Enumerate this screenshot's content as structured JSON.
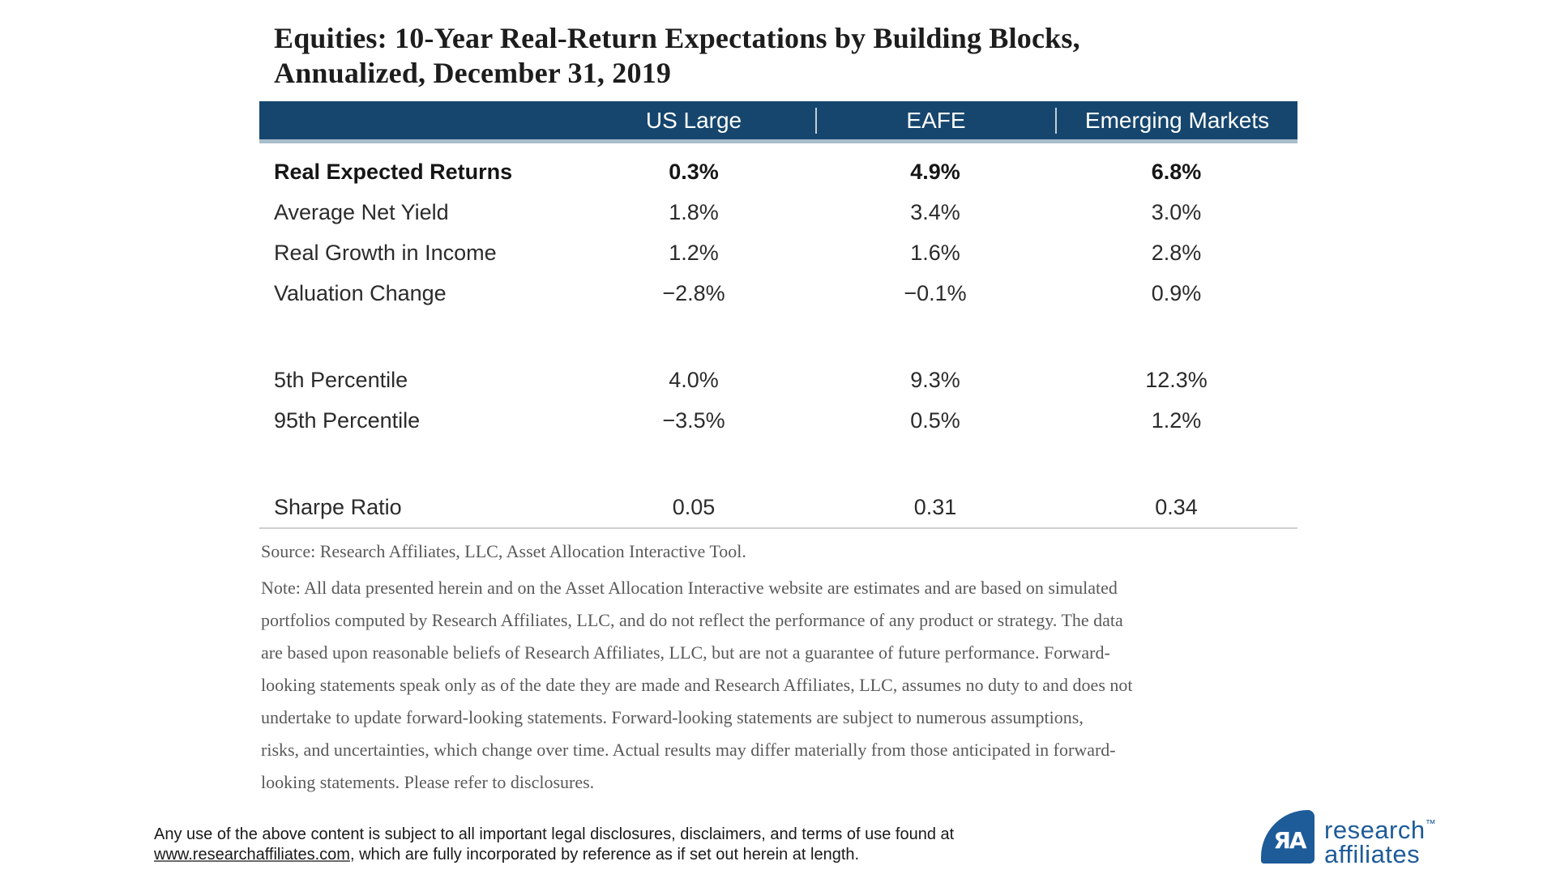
{
  "title": {
    "line1": "Equities: 10-Year Real-Return Expectations by Building Blocks,",
    "line2": "Annualized, December 31, 2019"
  },
  "table": {
    "columns": [
      "",
      "US Large",
      "EAFE",
      "Emerging Markets"
    ],
    "rows": [
      {
        "label": "Real Expected Returns",
        "values": [
          "0.3%",
          "4.9%",
          "6.8%"
        ]
      },
      {
        "label": "Average Net Yield",
        "values": [
          "1.8%",
          "3.4%",
          "3.0%"
        ]
      },
      {
        "label": "Real Growth in Income",
        "values": [
          "1.2%",
          "1.6%",
          "2.8%"
        ]
      },
      {
        "label": "Valuation Change",
        "values": [
          "−2.8%",
          "−0.1%",
          "0.9%"
        ]
      },
      {
        "label": "5th Percentile",
        "values": [
          "4.0%",
          "9.3%",
          "12.3%"
        ]
      },
      {
        "label": "95th Percentile",
        "values": [
          "−3.5%",
          "0.5%",
          "1.2%"
        ]
      },
      {
        "label": "Sharpe Ratio",
        "values": [
          "0.05",
          "0.31",
          "0.34"
        ]
      }
    ]
  },
  "source": {
    "text": "Source: Research Affiliates, LLC, Asset Allocation Interactive Tool."
  },
  "note": {
    "lines": [
      "Note: All data presented herein and on the Asset Allocation Interactive website are estimates and are based on simulated",
      "portfolios computed by Research Affiliates, LLC, and do not reflect the performance of any product or strategy. The data",
      "are based upon reasonable beliefs of Research Affiliates, LLC, but are not a guarantee of future performance. Forward-",
      "looking statements speak only as of the date they are made and Research Affiliates, LLC, assumes no duty to and does not",
      "undertake to update forward-looking statements. Forward-looking statements are subject to numerous assumptions,",
      "risks, and uncertainties, which change over time. Actual results may differ materially from those anticipated in forward-",
      "looking statements. Please refer to disclosures."
    ]
  },
  "footer": {
    "line1": "Any use of the above content is subject to all important legal disclosures, disclaimers, and terms of use found at",
    "link_text": "www.researchaffiliates.com",
    "line2_rest": ", which are fully incorporated by reference as if set out herein at length."
  },
  "logo": {
    "monogram": "ЯA",
    "name_line1": "research",
    "name_line2": "affiliates",
    "trademark": "™"
  },
  "colors": {
    "header_navy": "#16466e",
    "header_separator": "#c3cdd6",
    "header_underline": "#a9bdcb",
    "table_bottom_rule": "#cfcfcf",
    "body_text": "#2b2b2b",
    "note_gray": "#595959",
    "logo_blue": "#1e5b99"
  }
}
